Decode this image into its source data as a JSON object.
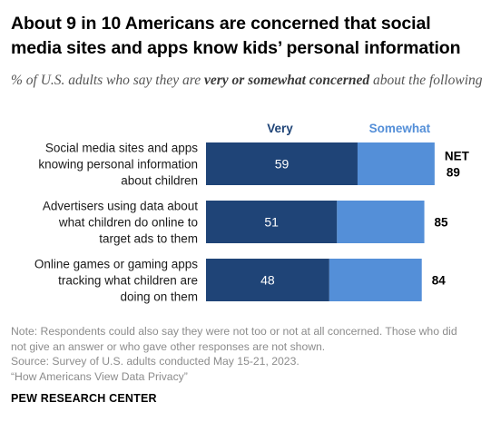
{
  "header": {
    "title": "About 9 in 10 Americans are concerned that social media sites and apps know kids’ personal information",
    "subtitle_before": "% of U.S. adults who say they are ",
    "subtitle_emphasis": "very or somewhat concerned",
    "subtitle_after": " about the following"
  },
  "chart_data": {
    "type": "bar",
    "orientation": "horizontal",
    "stacked": true,
    "categories": [
      [
        "Social media sites and apps",
        "knowing personal information",
        "about children"
      ],
      [
        "Advertisers using data about",
        "what children do online to",
        "target ads to them"
      ],
      [
        "Online games or gaming apps",
        "tracking what children are",
        "doing on them"
      ]
    ],
    "series": [
      {
        "name": "Very",
        "values": [
          59,
          51,
          48
        ],
        "color": "#1f4477",
        "label_color": "#1f4477",
        "value_text_color": "#ffffff"
      },
      {
        "name": "Somewhat",
        "values": [
          30,
          34,
          36
        ],
        "color": "#548fd8",
        "label_color": "#548fd8"
      }
    ],
    "net_header": "NET",
    "net_values": [
      89,
      85,
      84
    ],
    "xlim": [
      0,
      100
    ],
    "legend": "top"
  },
  "footer": {
    "note_lines": [
      "Note: Respondents could also say they were not too or not at all concerned. Those who did",
      "not give an answer or who gave other responses are not shown."
    ],
    "source_lines": [
      "Source: Survey of U.S. adults conducted May 15-21, 2023.",
      "“How Americans View Data Privacy”"
    ],
    "organization": "PEW RESEARCH CENTER"
  }
}
